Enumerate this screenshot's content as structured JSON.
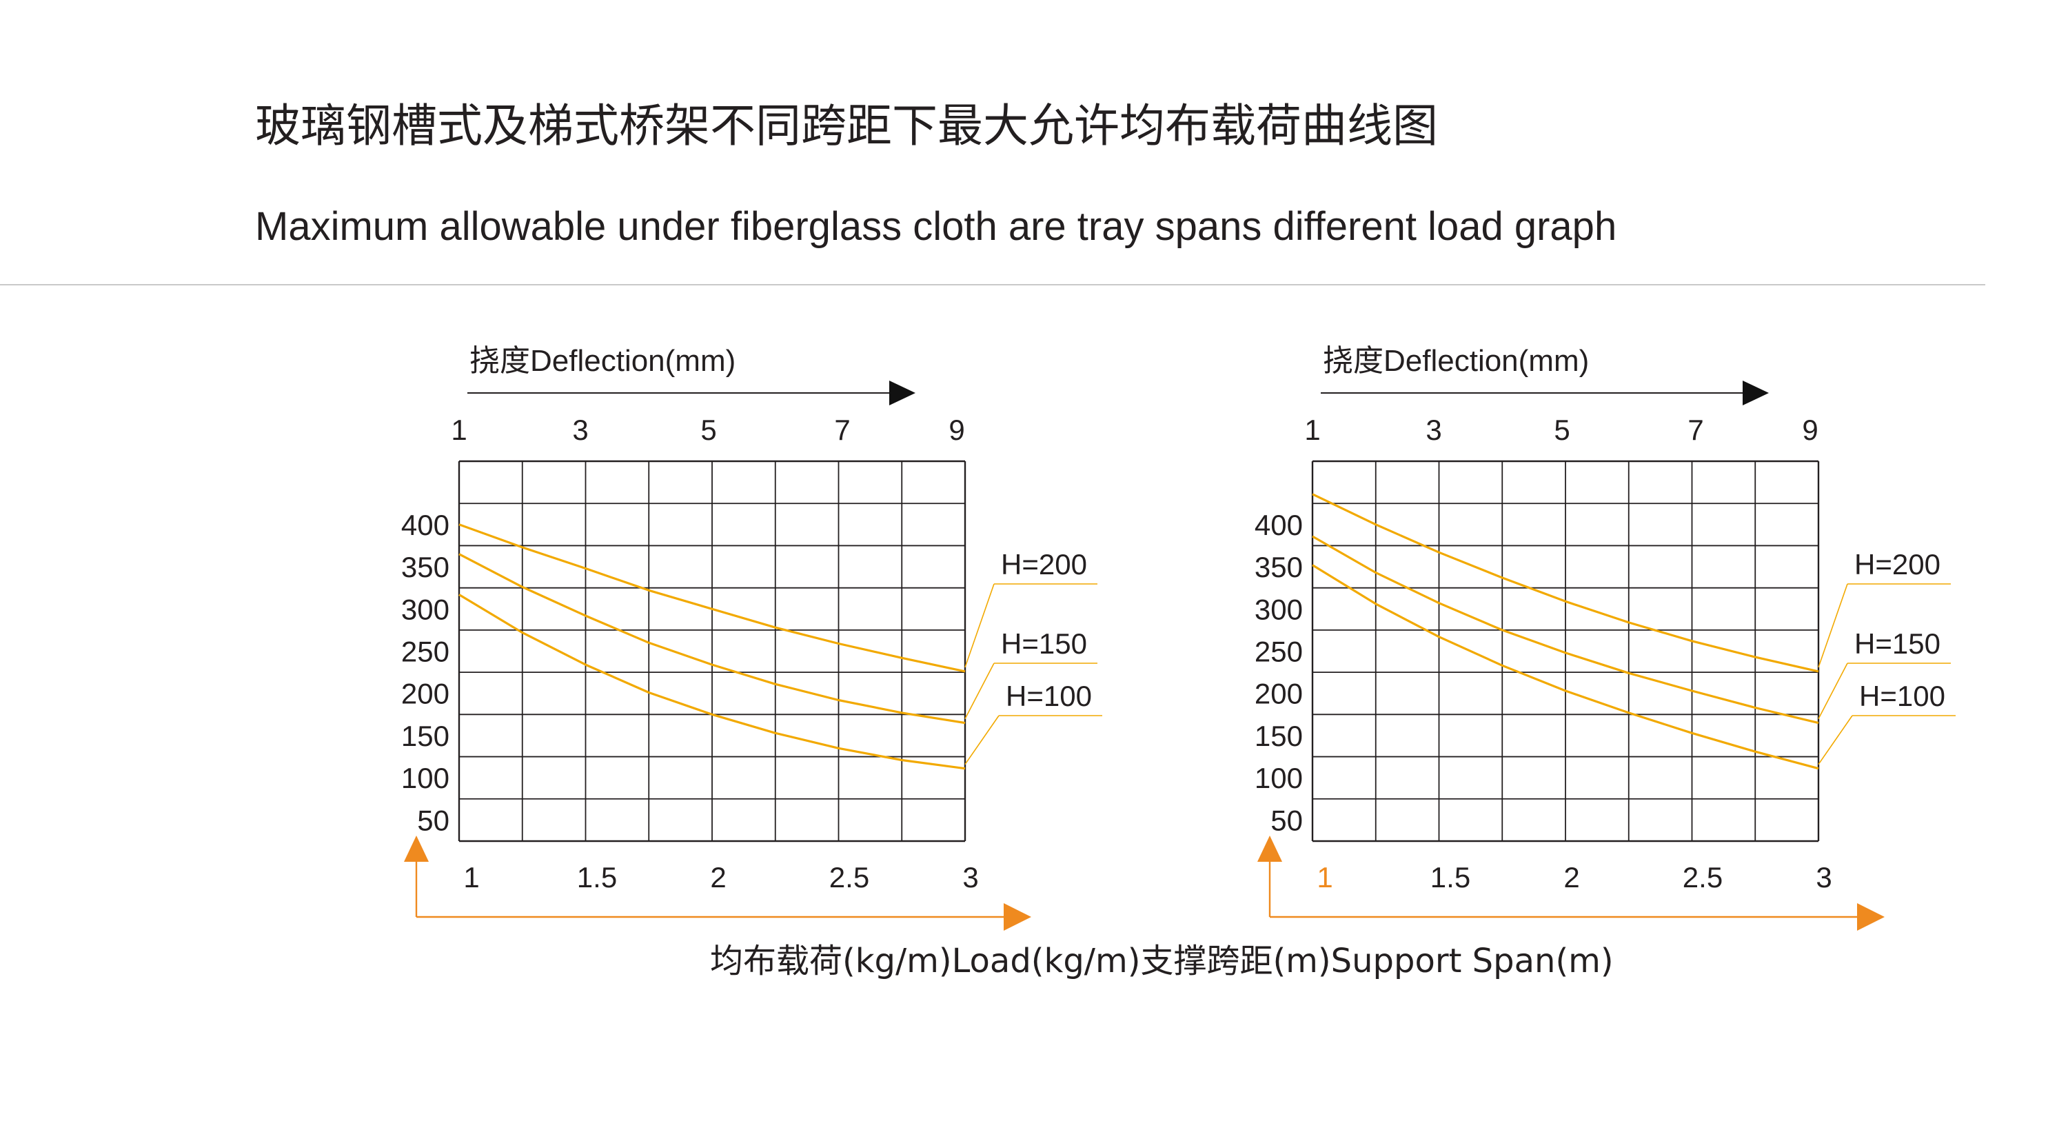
{
  "header": {
    "title_cn": "玻璃钢槽式及梯式桥架不同跨距下最大允许均布载荷曲线图",
    "title_en": "Maximum allowable under fiberglass cloth are tray spans different load graph"
  },
  "caption": "均布载荷(kg/m)Load(kg/m)支撑跨距(m)Support Span(m)",
  "colors": {
    "curve": "#f2a900",
    "arrow_orange": "#ef8a1f",
    "grid": "#231f20",
    "text": "#231f20"
  },
  "chart_data": [
    {
      "type": "line",
      "top_axis": {
        "label": "挠度Deflection(mm)",
        "ticks": [
          "1",
          "3",
          "5",
          "7",
          "9"
        ]
      },
      "x": [
        1,
        1.5,
        2,
        2.5,
        3
      ],
      "x_ticks": [
        "1",
        "1.5",
        "2",
        "2.5",
        "3"
      ],
      "xlim": [
        1,
        3
      ],
      "y_ticks": [
        "400",
        "350",
        "300",
        "250",
        "200",
        "150",
        "100",
        "50"
      ],
      "ylim": [
        25,
        475
      ],
      "grid": true,
      "series": [
        {
          "name": "H=200",
          "x": [
            1,
            1.25,
            1.5,
            1.75,
            2,
            2.25,
            2.5,
            2.75,
            3
          ],
          "values": [
            400,
            373,
            348,
            322,
            300,
            278,
            259,
            242,
            226
          ]
        },
        {
          "name": "H=150",
          "x": [
            1,
            1.25,
            1.5,
            1.75,
            2,
            2.25,
            2.5,
            2.75,
            3
          ],
          "values": [
            365,
            326,
            292,
            260,
            234,
            211,
            192,
            177,
            165
          ]
        },
        {
          "name": "H=100",
          "x": [
            1,
            1.25,
            1.5,
            1.75,
            2,
            2.25,
            2.5,
            2.75,
            3
          ],
          "values": [
            317,
            272,
            234,
            201,
            175,
            153,
            135,
            121,
            111
          ]
        }
      ]
    },
    {
      "type": "line",
      "top_axis": {
        "label": "挠度Deflection(mm)",
        "ticks": [
          "1",
          "3",
          "5",
          "7",
          "9"
        ]
      },
      "x": [
        1,
        1.5,
        2,
        2.5,
        3
      ],
      "x_ticks": [
        "1",
        "1.5",
        "2",
        "2.5",
        "3"
      ],
      "xlim": [
        1,
        3
      ],
      "y_ticks": [
        "400",
        "350",
        "300",
        "250",
        "200",
        "150",
        "100",
        "50"
      ],
      "ylim": [
        25,
        475
      ],
      "grid": true,
      "series": [
        {
          "name": "H=200",
          "x": [
            1,
            1.25,
            1.5,
            1.75,
            2,
            2.25,
            2.5,
            2.75,
            3
          ],
          "values": [
            436,
            400,
            367,
            337,
            309,
            284,
            262,
            243,
            226
          ]
        },
        {
          "name": "H=150",
          "x": [
            1,
            1.25,
            1.5,
            1.75,
            2,
            2.25,
            2.5,
            2.75,
            3
          ],
          "values": [
            386,
            343,
            307,
            275,
            248,
            224,
            203,
            183,
            165
          ]
        },
        {
          "name": "H=100",
          "x": [
            1,
            1.25,
            1.5,
            1.75,
            2,
            2.25,
            2.5,
            2.75,
            3
          ],
          "values": [
            352,
            306,
            267,
            233,
            203,
            177,
            153,
            131,
            111
          ]
        }
      ]
    }
  ]
}
